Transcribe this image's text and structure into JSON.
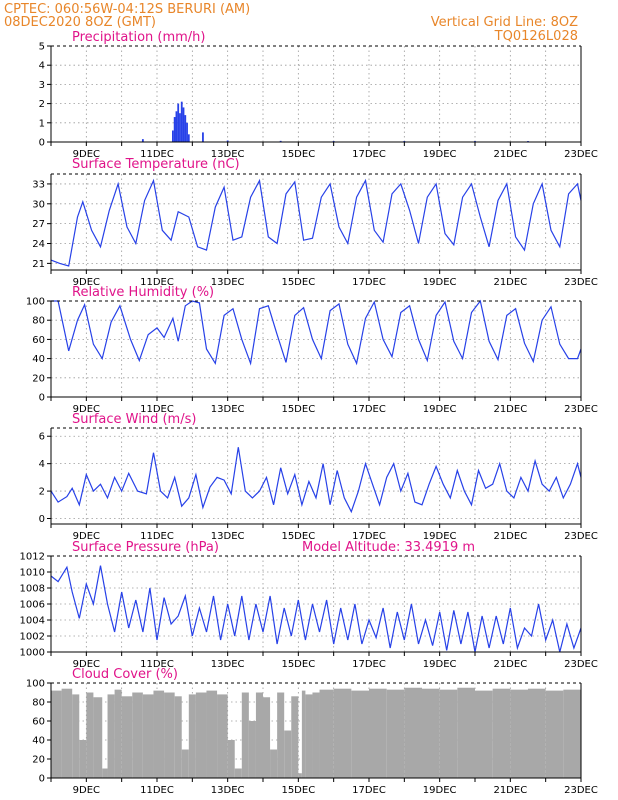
{
  "header": {
    "line1_left": "CPTEC:   060:56W-04:12S   BERURI (AM)",
    "line2_left": "08DEC2020 8OZ (GMT)",
    "line1_right": "Vertical Grid Line: 8OZ",
    "line2_right": "TQ0126L028"
  },
  "colors": {
    "header": "#e8862a",
    "title": "#e0148a",
    "series": "#2741e8",
    "cloud": "#a8a8a8"
  },
  "x_axis": {
    "start": "08DEC2020 8OZ",
    "end": "23DEC",
    "labels": [
      "9DEC",
      "11DEC",
      "13DEC",
      "15DEC",
      "17DEC",
      "19DEC",
      "21DEC",
      "23DEC"
    ],
    "label_days": [
      1,
      3,
      5,
      7,
      9,
      11,
      13,
      15
    ]
  },
  "chart_data": [
    {
      "id": "precip",
      "type": "bar",
      "title": "Precipitation (mm/h)",
      "ylim": [
        0,
        5
      ],
      "yticks": [
        0,
        1,
        2,
        3,
        4,
        5
      ],
      "grid": true,
      "x_days": [
        2.6,
        3.45,
        3.5,
        3.55,
        3.6,
        3.65,
        3.7,
        3.75,
        3.8,
        3.85,
        3.9,
        4.3,
        5.0,
        6.5,
        8.0,
        10.0,
        12.0,
        13.5
      ],
      "values": [
        0.15,
        0.6,
        1.3,
        1.6,
        2.0,
        1.5,
        2.1,
        1.8,
        1.4,
        1.0,
        0.4,
        0.5,
        0.08,
        0.06,
        0.05,
        0.05,
        0.05,
        0.05
      ]
    },
    {
      "id": "temp",
      "type": "line",
      "title": "Surface Temperature (nC)",
      "ylim": [
        20,
        34.5
      ],
      "yticks": [
        21,
        24,
        27,
        30,
        33
      ],
      "grid": true,
      "x_days": [
        0.0,
        0.25,
        0.5,
        0.75,
        0.9,
        1.15,
        1.4,
        1.65,
        1.9,
        2.15,
        2.4,
        2.65,
        2.9,
        3.15,
        3.4,
        3.6,
        3.9,
        4.15,
        4.4,
        4.65,
        4.9,
        5.15,
        5.4,
        5.65,
        5.9,
        6.15,
        6.4,
        6.65,
        6.9,
        7.15,
        7.4,
        7.65,
        7.9,
        8.15,
        8.4,
        8.65,
        8.9,
        9.15,
        9.4,
        9.65,
        9.9,
        10.15,
        10.4,
        10.65,
        10.9,
        11.15,
        11.4,
        11.65,
        11.9,
        12.15,
        12.4,
        12.65,
        12.9,
        13.15,
        13.4,
        13.65,
        13.9,
        14.15,
        14.4,
        14.65,
        14.9,
        15.0
      ],
      "values": [
        21.5,
        21.0,
        20.6,
        28.0,
        30.3,
        26.0,
        23.5,
        29.0,
        33.0,
        26.5,
        24.0,
        30.5,
        33.5,
        26.0,
        24.5,
        28.8,
        28.0,
        23.5,
        23.0,
        29.5,
        32.5,
        24.5,
        25.0,
        31.0,
        33.5,
        25.0,
        24.0,
        31.5,
        33.3,
        24.5,
        24.8,
        31.0,
        33.0,
        26.5,
        24.0,
        31.0,
        33.5,
        26.0,
        24.2,
        31.5,
        33.0,
        29.0,
        24.0,
        31.0,
        33.0,
        25.5,
        23.8,
        31.0,
        33.0,
        28.0,
        23.5,
        30.5,
        33.0,
        25.0,
        23.0,
        30.0,
        33.0,
        26.0,
        23.5,
        31.5,
        33.0,
        30.5
      ]
    },
    {
      "id": "rh",
      "type": "line",
      "title": "Relative Humidity (%)",
      "ylim": [
        0,
        100
      ],
      "yticks": [
        0,
        20,
        40,
        60,
        80,
        100
      ],
      "grid": true,
      "x_days": [
        0.0,
        0.2,
        0.5,
        0.75,
        0.95,
        1.2,
        1.45,
        1.7,
        1.95,
        2.25,
        2.5,
        2.75,
        3.0,
        3.2,
        3.45,
        3.6,
        3.8,
        4.0,
        4.2,
        4.4,
        4.65,
        4.9,
        5.15,
        5.4,
        5.65,
        5.9,
        6.15,
        6.4,
        6.65,
        6.9,
        7.15,
        7.4,
        7.65,
        7.9,
        8.15,
        8.4,
        8.65,
        8.9,
        9.15,
        9.4,
        9.65,
        9.9,
        10.15,
        10.4,
        10.65,
        10.9,
        11.15,
        11.4,
        11.65,
        11.9,
        12.15,
        12.4,
        12.65,
        12.9,
        13.15,
        13.4,
        13.65,
        13.9,
        14.15,
        14.4,
        14.65,
        14.9,
        15.0
      ],
      "values": [
        100,
        100,
        48,
        80,
        96,
        55,
        40,
        78,
        95,
        60,
        38,
        65,
        72,
        62,
        82,
        58,
        95,
        100,
        98,
        50,
        35,
        85,
        92,
        60,
        35,
        92,
        95,
        65,
        36,
        85,
        93,
        60,
        40,
        90,
        97,
        55,
        35,
        82,
        99,
        60,
        42,
        88,
        95,
        60,
        38,
        85,
        99,
        58,
        40,
        88,
        100,
        58,
        39,
        85,
        92,
        56,
        37,
        80,
        94,
        55,
        40,
        40,
        50
      ]
    },
    {
      "id": "wind",
      "type": "line",
      "title": "Surface Wind (m/s)",
      "ylim": [
        -0.4,
        6.6
      ],
      "yticks": [
        0,
        2,
        4,
        6
      ],
      "grid": true,
      "x_days": [
        0.0,
        0.2,
        0.45,
        0.6,
        0.8,
        1.0,
        1.2,
        1.4,
        1.6,
        1.8,
        2.0,
        2.2,
        2.45,
        2.7,
        2.9,
        3.1,
        3.3,
        3.5,
        3.7,
        3.9,
        4.1,
        4.3,
        4.5,
        4.7,
        4.9,
        5.1,
        5.3,
        5.5,
        5.7,
        5.9,
        6.1,
        6.3,
        6.5,
        6.7,
        6.9,
        7.1,
        7.3,
        7.5,
        7.7,
        7.9,
        8.1,
        8.3,
        8.5,
        8.7,
        8.9,
        9.1,
        9.3,
        9.5,
        9.7,
        9.9,
        10.1,
        10.3,
        10.5,
        10.7,
        10.9,
        11.1,
        11.3,
        11.5,
        11.7,
        11.9,
        12.1,
        12.3,
        12.5,
        12.7,
        12.9,
        13.1,
        13.3,
        13.5,
        13.7,
        13.9,
        14.1,
        14.3,
        14.5,
        14.7,
        14.9,
        15.0
      ],
      "values": [
        2.0,
        1.2,
        1.6,
        2.2,
        1.0,
        3.2,
        2.0,
        2.5,
        1.5,
        3.0,
        2.0,
        3.3,
        2.0,
        1.8,
        4.8,
        2.0,
        1.5,
        3.0,
        0.9,
        1.5,
        3.2,
        0.8,
        2.3,
        3.0,
        2.8,
        1.8,
        5.2,
        2.0,
        1.5,
        2.0,
        3.0,
        1.0,
        3.7,
        1.8,
        3.2,
        1.0,
        2.7,
        1.5,
        4.0,
        1.0,
        3.5,
        1.5,
        0.5,
        2.0,
        4.0,
        2.5,
        1.0,
        3.0,
        4.0,
        2.0,
        3.3,
        1.2,
        1.0,
        2.5,
        3.8,
        2.5,
        1.5,
        3.5,
        2.0,
        1.0,
        3.5,
        2.2,
        2.5,
        4.0,
        2.0,
        1.5,
        3.0,
        2.0,
        4.2,
        2.5,
        2.0,
        3.0,
        1.5,
        2.5,
        4.0,
        3.0
      ]
    },
    {
      "id": "pressure",
      "type": "line",
      "title": "Surface Pressure (hPa)",
      "annotation": "Model Altitude: 33.4919  m",
      "ylim": [
        1000,
        1012
      ],
      "yticks": [
        1000,
        1002,
        1004,
        1006,
        1008,
        1010,
        1012
      ],
      "grid": true,
      "x_days": [
        0.0,
        0.2,
        0.45,
        0.6,
        0.8,
        1.0,
        1.2,
        1.4,
        1.6,
        1.8,
        2.0,
        2.2,
        2.4,
        2.6,
        2.8,
        3.0,
        3.2,
        3.4,
        3.6,
        3.8,
        4.0,
        4.2,
        4.4,
        4.6,
        4.8,
        5.0,
        5.2,
        5.4,
        5.6,
        5.8,
        6.0,
        6.2,
        6.4,
        6.6,
        6.8,
        7.0,
        7.2,
        7.4,
        7.6,
        7.8,
        8.0,
        8.2,
        8.4,
        8.6,
        8.8,
        9.0,
        9.2,
        9.4,
        9.6,
        9.8,
        10.0,
        10.2,
        10.4,
        10.6,
        10.8,
        11.0,
        11.2,
        11.4,
        11.6,
        11.8,
        12.0,
        12.2,
        12.4,
        12.6,
        12.8,
        13.0,
        13.2,
        13.4,
        13.6,
        13.8,
        14.0,
        14.2,
        14.4,
        14.6,
        14.8,
        15.0
      ],
      "values": [
        1009.5,
        1008.8,
        1010.6,
        1007.5,
        1004.2,
        1008.5,
        1006.0,
        1010.8,
        1006.0,
        1002.5,
        1007.5,
        1003.0,
        1006.5,
        1002.5,
        1008.0,
        1001.5,
        1006.8,
        1003.5,
        1004.5,
        1007.0,
        1002.0,
        1005.5,
        1002.5,
        1007.0,
        1001.5,
        1006.0,
        1002.0,
        1007.0,
        1001.5,
        1006.0,
        1002.5,
        1007.0,
        1001.0,
        1005.5,
        1002.0,
        1006.5,
        1001.5,
        1006.0,
        1002.5,
        1006.5,
        1001.0,
        1005.5,
        1001.5,
        1006.0,
        1001.0,
        1004.0,
        1001.8,
        1005.5,
        1000.5,
        1005.0,
        1001.5,
        1006.0,
        1001.0,
        1004.0,
        1000.8,
        1005.0,
        1000.2,
        1005.2,
        1001.0,
        1005.0,
        1000.0,
        1004.5,
        1000.5,
        1004.5,
        1001.0,
        1005.5,
        1000.5,
        1003.0,
        1002.0,
        1006.0,
        1001.5,
        1004.0,
        1000.0,
        1003.5,
        1000.5,
        1003.0
      ]
    },
    {
      "id": "cloud",
      "type": "area",
      "title": "Cloud Cover (%)",
      "ylim": [
        0,
        100
      ],
      "yticks": [
        0,
        20,
        40,
        60,
        80,
        100
      ],
      "grid": true,
      "x_days": [
        0.0,
        0.3,
        0.6,
        0.8,
        1.0,
        1.2,
        1.45,
        1.6,
        1.8,
        2.0,
        2.3,
        2.6,
        2.9,
        3.2,
        3.5,
        3.7,
        3.9,
        4.1,
        4.4,
        4.7,
        5.0,
        5.2,
        5.4,
        5.6,
        5.8,
        6.0,
        6.2,
        6.4,
        6.6,
        6.8,
        7.0,
        7.1,
        7.2,
        7.4,
        7.6,
        8.0,
        8.5,
        9.0,
        9.5,
        10.0,
        10.5,
        11.0,
        11.5,
        12.0,
        12.5,
        13.0,
        13.5,
        14.0,
        14.5,
        15.0
      ],
      "values": [
        92,
        94,
        88,
        40,
        90,
        85,
        10,
        88,
        93,
        86,
        90,
        88,
        92,
        90,
        86,
        30,
        88,
        90,
        92,
        88,
        40,
        10,
        90,
        60,
        90,
        85,
        30,
        90,
        50,
        86,
        5,
        92,
        88,
        90,
        93,
        94,
        92,
        94,
        93,
        95,
        94,
        93,
        95,
        92,
        94,
        93,
        94,
        92,
        93,
        92
      ]
    }
  ]
}
